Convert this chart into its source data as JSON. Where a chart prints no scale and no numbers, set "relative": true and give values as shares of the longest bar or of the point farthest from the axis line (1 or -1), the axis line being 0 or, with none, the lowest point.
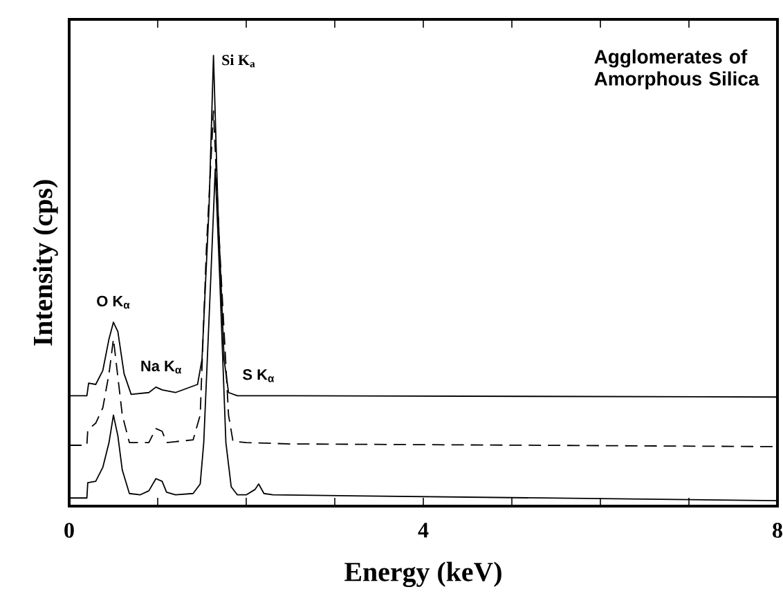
{
  "chart_data": {
    "type": "line",
    "title": "Agglomerates of Amorphous Silica",
    "xlabel": "Energy (keV)",
    "ylabel": "Intensity (cps)",
    "relative": true,
    "marker": "none",
    "xlim": [
      0,
      8
    ],
    "xticks": [
      0,
      {
        "value": 1,
        "label": null
      },
      {
        "value": 2,
        "label": null
      },
      {
        "value": 3,
        "label": null
      },
      4,
      {
        "value": 5,
        "label": null
      },
      {
        "value": 6,
        "label": null
      },
      {
        "value": 7,
        "label": null
      },
      8
    ],
    "series": [
      {
        "color": "#000000",
        "line_style": "solid",
        "x": [
          0,
          0.2,
          0.22,
          0.3,
          0.38,
          0.45,
          0.5,
          0.55,
          0.62,
          0.7,
          0.9,
          0.98,
          1.05,
          1.2,
          1.45,
          1.5,
          1.58,
          1.63,
          1.68,
          1.75,
          1.8,
          1.9,
          2.5,
          8
        ],
        "values": [
          0.245,
          0.245,
          0.273,
          0.27,
          0.301,
          0.371,
          0.408,
          0.387,
          0.294,
          0.248,
          0.252,
          0.264,
          0.258,
          0.252,
          0.27,
          0.325,
          0.663,
          1.0,
          0.663,
          0.325,
          0.252,
          0.245,
          0.245,
          0.242
        ]
      },
      {
        "color": "#000000",
        "line_style": "dashed",
        "x": [
          0,
          0.2,
          0.21,
          0.3,
          0.38,
          0.45,
          0.5,
          0.6,
          0.68,
          0.9,
          0.98,
          1.05,
          1.1,
          1.4,
          1.48,
          1.55,
          1.63,
          1.7,
          1.8,
          1.85,
          2.0,
          2.5,
          8
        ],
        "values": [
          0.135,
          0.135,
          0.169,
          0.184,
          0.218,
          0.294,
          0.371,
          0.202,
          0.141,
          0.141,
          0.172,
          0.166,
          0.141,
          0.147,
          0.202,
          0.571,
          0.877,
          0.571,
          0.202,
          0.144,
          0.141,
          0.138,
          0.132
        ]
      },
      {
        "color": "#000000",
        "line_style": "solid",
        "x": [
          0,
          0.2,
          0.21,
          0.3,
          0.38,
          0.45,
          0.5,
          0.55,
          0.6,
          0.68,
          0.8,
          0.9,
          0.98,
          1.05,
          1.1,
          1.2,
          1.4,
          1.48,
          1.52,
          1.6,
          1.65,
          1.7,
          1.77,
          1.83,
          1.9,
          2.0,
          2.1,
          2.14,
          2.2,
          2.3,
          8
        ],
        "values": [
          0.018,
          0.018,
          0.052,
          0.055,
          0.086,
          0.141,
          0.202,
          0.156,
          0.08,
          0.028,
          0.025,
          0.034,
          0.061,
          0.055,
          0.031,
          0.025,
          0.028,
          0.049,
          0.141,
          0.509,
          0.748,
          0.509,
          0.141,
          0.043,
          0.025,
          0.025,
          0.037,
          0.049,
          0.028,
          0.025,
          0.012
        ]
      }
    ],
    "annotations": [
      {
        "text": "O K$_{α}$",
        "x": 0.5,
        "y": 0.408
      },
      {
        "text": "Na K$_{α}$",
        "x": 1.04,
        "y": 0.264
      },
      {
        "text": "Si K$_{a}$",
        "x": 1.63,
        "y": 1.0
      },
      {
        "text": "S K$_{α}$",
        "x": 2.14,
        "y": 0.245
      }
    ]
  }
}
